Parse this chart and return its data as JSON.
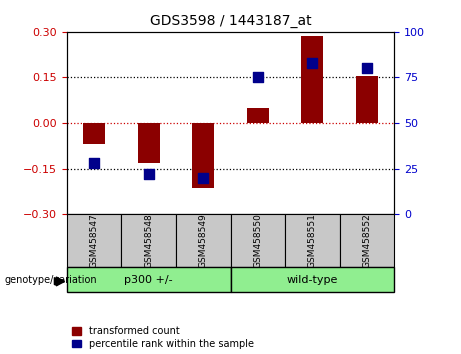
{
  "title": "GDS3598 / 1443187_at",
  "samples": [
    "GSM458547",
    "GSM458548",
    "GSM458549",
    "GSM458550",
    "GSM458551",
    "GSM458552"
  ],
  "transformed_count": [
    -0.07,
    -0.13,
    -0.215,
    0.05,
    0.285,
    0.155
  ],
  "percentile_rank": [
    28,
    22,
    20,
    75,
    83,
    80
  ],
  "ylim_left": [
    -0.3,
    0.3
  ],
  "ylim_right": [
    0,
    100
  ],
  "yticks_left": [
    -0.3,
    -0.15,
    0,
    0.15,
    0.3
  ],
  "yticks_right": [
    0,
    25,
    50,
    75,
    100
  ],
  "bar_color": "#8B0000",
  "dot_color": "#00008B",
  "hline_zero_color": "#cc0000",
  "hline_dotted_color": "black",
  "left_tick_color": "#cc0000",
  "right_tick_color": "#0000cc",
  "legend_red_label": "transformed count",
  "legend_blue_label": "percentile rank within the sample",
  "genotype_label": "genotype/variation",
  "group1_label": "p300 +/-",
  "group2_label": "wild-type",
  "group_color": "#90EE90",
  "sample_box_color": "#c8c8c8",
  "bar_width": 0.4,
  "dot_size": 55
}
